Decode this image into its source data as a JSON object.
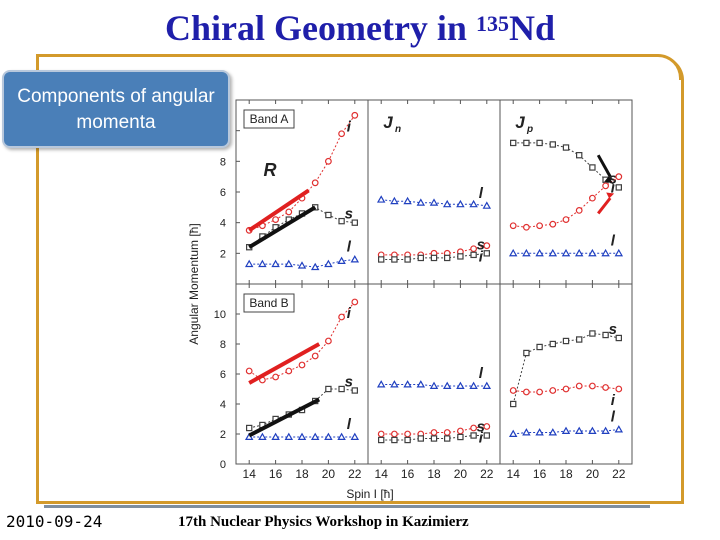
{
  "slide": {
    "title_main": "Chiral Geometry in ",
    "title_sup": "135",
    "title_end": "Nd",
    "callout": "Components of angular momenta",
    "date": "2010-09-24",
    "footer": "17th Nuclear Physics Workshop in Kazimierz"
  },
  "colors": {
    "title": "#1f1faa",
    "frame": "#d39a2b",
    "callout_bg": "#4a7fb8",
    "i_series": "#e03030",
    "s_series": "#404040",
    "l_series": "#2040c0"
  },
  "chart_data": [
    {
      "type": "line",
      "band": "Band A",
      "panel_label": "",
      "annotation": "R",
      "xlabel": "Spin I [ħ]",
      "ylabel": "Angular Momentum [ħ]",
      "xlim": [
        13,
        23
      ],
      "ylim": [
        0,
        12
      ],
      "x": [
        14,
        15,
        16,
        17,
        18,
        19,
        20,
        21,
        22
      ],
      "series": [
        {
          "name": "i",
          "values": [
            3.5,
            3.8,
            4.2,
            4.7,
            5.6,
            6.6,
            8.0,
            9.8,
            11.0
          ]
        },
        {
          "name": "s",
          "values": [
            2.4,
            3.1,
            3.7,
            4.2,
            4.6,
            5.0,
            4.5,
            4.1,
            4.0
          ]
        },
        {
          "name": "l",
          "values": [
            1.3,
            1.3,
            1.3,
            1.3,
            1.2,
            1.1,
            1.3,
            1.5,
            1.6
          ]
        }
      ]
    },
    {
      "type": "line",
      "band": "",
      "panel_label": "Jn",
      "xlim": [
        13,
        23
      ],
      "ylim": [
        0,
        12
      ],
      "x": [
        14,
        15,
        16,
        17,
        18,
        19,
        20,
        21,
        22
      ],
      "series": [
        {
          "name": "l",
          "values": [
            5.5,
            5.4,
            5.4,
            5.3,
            5.3,
            5.2,
            5.2,
            5.2,
            5.1
          ]
        },
        {
          "name": "i",
          "values": [
            1.9,
            1.9,
            1.9,
            1.9,
            2.0,
            2.0,
            2.1,
            2.3,
            2.5
          ]
        },
        {
          "name": "s",
          "values": [
            1.6,
            1.6,
            1.6,
            1.7,
            1.7,
            1.7,
            1.8,
            1.9,
            2.0
          ]
        }
      ]
    },
    {
      "type": "line",
      "band": "",
      "panel_label": "Jp",
      "xlim": [
        13,
        23
      ],
      "ylim": [
        0,
        12
      ],
      "x": [
        14,
        15,
        16,
        17,
        18,
        19,
        20,
        21,
        22
      ],
      "series": [
        {
          "name": "s",
          "values": [
            9.2,
            9.2,
            9.2,
            9.1,
            8.9,
            8.4,
            7.6,
            6.8,
            6.3
          ]
        },
        {
          "name": "i",
          "values": [
            3.8,
            3.7,
            3.8,
            3.9,
            4.2,
            4.8,
            5.6,
            6.4,
            7.0
          ]
        },
        {
          "name": "l",
          "values": [
            2.0,
            2.0,
            2.0,
            2.0,
            2.0,
            2.0,
            2.0,
            2.0,
            2.0
          ]
        }
      ]
    },
    {
      "type": "line",
      "band": "Band B",
      "panel_label": "",
      "xlim": [
        13,
        23
      ],
      "ylim": [
        0,
        12
      ],
      "x": [
        14,
        15,
        16,
        17,
        18,
        19,
        20,
        21,
        22
      ],
      "series": [
        {
          "name": "i",
          "values": [
            6.2,
            5.6,
            5.8,
            6.2,
            6.6,
            7.2,
            8.2,
            9.8,
            10.8
          ]
        },
        {
          "name": "s",
          "values": [
            2.4,
            2.6,
            3.0,
            3.3,
            3.6,
            4.2,
            5.0,
            5.0,
            4.9
          ]
        },
        {
          "name": "l",
          "values": [
            1.8,
            1.8,
            1.8,
            1.8,
            1.8,
            1.8,
            1.8,
            1.8,
            1.8
          ]
        }
      ]
    },
    {
      "type": "line",
      "band": "",
      "panel_label": "",
      "xlim": [
        13,
        23
      ],
      "ylim": [
        0,
        12
      ],
      "x": [
        14,
        15,
        16,
        17,
        18,
        19,
        20,
        21,
        22
      ],
      "series": [
        {
          "name": "l",
          "values": [
            5.3,
            5.3,
            5.3,
            5.3,
            5.2,
            5.2,
            5.2,
            5.2,
            5.2
          ]
        },
        {
          "name": "i",
          "values": [
            2.0,
            2.0,
            2.0,
            2.0,
            2.1,
            2.1,
            2.2,
            2.4,
            2.5
          ]
        },
        {
          "name": "s",
          "values": [
            1.6,
            1.6,
            1.6,
            1.7,
            1.7,
            1.7,
            1.8,
            1.9,
            1.9
          ]
        }
      ]
    },
    {
      "type": "line",
      "band": "",
      "panel_label": "",
      "xlim": [
        13,
        23
      ],
      "ylim": [
        0,
        12
      ],
      "x": [
        14,
        15,
        16,
        17,
        18,
        19,
        20,
        21,
        22
      ],
      "series": [
        {
          "name": "s",
          "values": [
            4.0,
            7.4,
            7.8,
            8.0,
            8.2,
            8.3,
            8.7,
            8.6,
            8.4
          ]
        },
        {
          "name": "i",
          "values": [
            4.9,
            4.8,
            4.8,
            4.9,
            5.0,
            5.2,
            5.2,
            5.1,
            5.0
          ]
        },
        {
          "name": "l",
          "values": [
            2.0,
            2.1,
            2.1,
            2.1,
            2.2,
            2.2,
            2.2,
            2.2,
            2.3
          ]
        }
      ]
    }
  ],
  "axes": {
    "y_ticks_top": [
      0,
      2,
      4,
      6,
      8,
      10,
      12
    ],
    "y_ticks_bottom": [
      0,
      2,
      4,
      6,
      8,
      10
    ],
    "x_ticks": [
      14,
      16,
      18,
      20,
      22
    ],
    "ylabel": "Angular Momentum [ħ]",
    "xlabel": "Spin I [ħ]"
  },
  "series_labels": {
    "top_A": {
      "i": "i",
      "s": "s",
      "l": "l",
      "R": "R"
    }
  }
}
